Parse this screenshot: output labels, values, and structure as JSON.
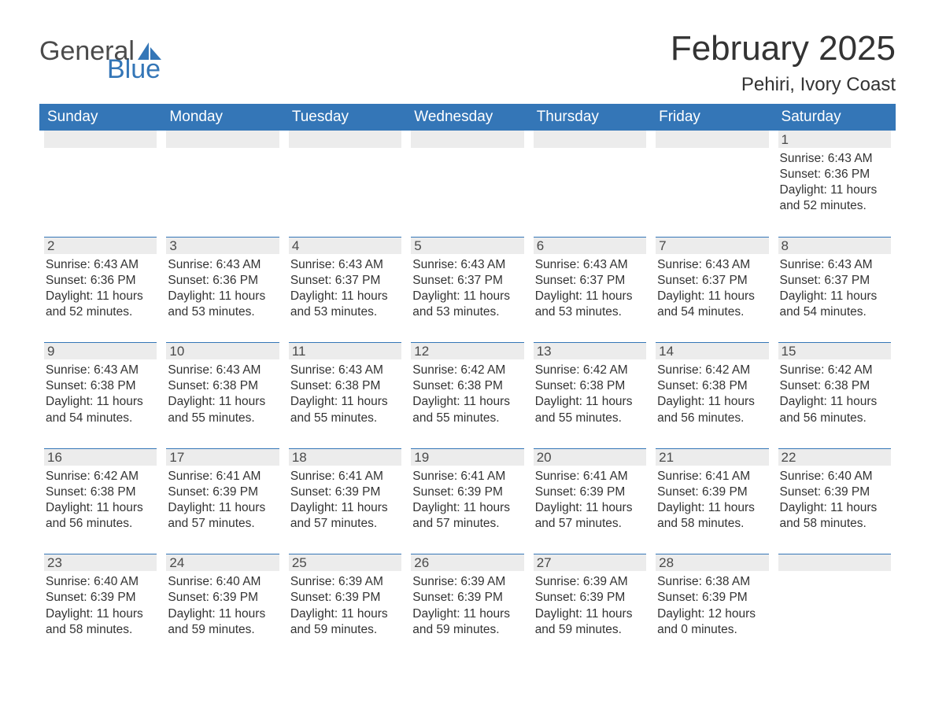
{
  "logo": {
    "part1": "General",
    "part2": "Blue",
    "sail_color": "#3476b7"
  },
  "title": "February 2025",
  "location": "Pehiri, Ivory Coast",
  "colors": {
    "header_bg": "#3476b7",
    "header_text": "#ffffff",
    "daybar_bg": "#ececec",
    "daybar_border": "#3476b7",
    "text": "#333333",
    "page_bg": "#ffffff"
  },
  "weekdays": [
    "Sunday",
    "Monday",
    "Tuesday",
    "Wednesday",
    "Thursday",
    "Friday",
    "Saturday"
  ],
  "grid": {
    "rows": 5,
    "cols": 7,
    "empty_leading": 6,
    "empty_trailing": 1
  },
  "days": [
    {
      "n": "1",
      "sunrise": "6:43 AM",
      "sunset": "6:36 PM",
      "daylight": "11 hours and 52 minutes."
    },
    {
      "n": "2",
      "sunrise": "6:43 AM",
      "sunset": "6:36 PM",
      "daylight": "11 hours and 52 minutes."
    },
    {
      "n": "3",
      "sunrise": "6:43 AM",
      "sunset": "6:36 PM",
      "daylight": "11 hours and 53 minutes."
    },
    {
      "n": "4",
      "sunrise": "6:43 AM",
      "sunset": "6:37 PM",
      "daylight": "11 hours and 53 minutes."
    },
    {
      "n": "5",
      "sunrise": "6:43 AM",
      "sunset": "6:37 PM",
      "daylight": "11 hours and 53 minutes."
    },
    {
      "n": "6",
      "sunrise": "6:43 AM",
      "sunset": "6:37 PM",
      "daylight": "11 hours and 53 minutes."
    },
    {
      "n": "7",
      "sunrise": "6:43 AM",
      "sunset": "6:37 PM",
      "daylight": "11 hours and 54 minutes."
    },
    {
      "n": "8",
      "sunrise": "6:43 AM",
      "sunset": "6:37 PM",
      "daylight": "11 hours and 54 minutes."
    },
    {
      "n": "9",
      "sunrise": "6:43 AM",
      "sunset": "6:38 PM",
      "daylight": "11 hours and 54 minutes."
    },
    {
      "n": "10",
      "sunrise": "6:43 AM",
      "sunset": "6:38 PM",
      "daylight": "11 hours and 55 minutes."
    },
    {
      "n": "11",
      "sunrise": "6:43 AM",
      "sunset": "6:38 PM",
      "daylight": "11 hours and 55 minutes."
    },
    {
      "n": "12",
      "sunrise": "6:42 AM",
      "sunset": "6:38 PM",
      "daylight": "11 hours and 55 minutes."
    },
    {
      "n": "13",
      "sunrise": "6:42 AM",
      "sunset": "6:38 PM",
      "daylight": "11 hours and 55 minutes."
    },
    {
      "n": "14",
      "sunrise": "6:42 AM",
      "sunset": "6:38 PM",
      "daylight": "11 hours and 56 minutes."
    },
    {
      "n": "15",
      "sunrise": "6:42 AM",
      "sunset": "6:38 PM",
      "daylight": "11 hours and 56 minutes."
    },
    {
      "n": "16",
      "sunrise": "6:42 AM",
      "sunset": "6:38 PM",
      "daylight": "11 hours and 56 minutes."
    },
    {
      "n": "17",
      "sunrise": "6:41 AM",
      "sunset": "6:39 PM",
      "daylight": "11 hours and 57 minutes."
    },
    {
      "n": "18",
      "sunrise": "6:41 AM",
      "sunset": "6:39 PM",
      "daylight": "11 hours and 57 minutes."
    },
    {
      "n": "19",
      "sunrise": "6:41 AM",
      "sunset": "6:39 PM",
      "daylight": "11 hours and 57 minutes."
    },
    {
      "n": "20",
      "sunrise": "6:41 AM",
      "sunset": "6:39 PM",
      "daylight": "11 hours and 57 minutes."
    },
    {
      "n": "21",
      "sunrise": "6:41 AM",
      "sunset": "6:39 PM",
      "daylight": "11 hours and 58 minutes."
    },
    {
      "n": "22",
      "sunrise": "6:40 AM",
      "sunset": "6:39 PM",
      "daylight": "11 hours and 58 minutes."
    },
    {
      "n": "23",
      "sunrise": "6:40 AM",
      "sunset": "6:39 PM",
      "daylight": "11 hours and 58 minutes."
    },
    {
      "n": "24",
      "sunrise": "6:40 AM",
      "sunset": "6:39 PM",
      "daylight": "11 hours and 59 minutes."
    },
    {
      "n": "25",
      "sunrise": "6:39 AM",
      "sunset": "6:39 PM",
      "daylight": "11 hours and 59 minutes."
    },
    {
      "n": "26",
      "sunrise": "6:39 AM",
      "sunset": "6:39 PM",
      "daylight": "11 hours and 59 minutes."
    },
    {
      "n": "27",
      "sunrise": "6:39 AM",
      "sunset": "6:39 PM",
      "daylight": "11 hours and 59 minutes."
    },
    {
      "n": "28",
      "sunrise": "6:38 AM",
      "sunset": "6:39 PM",
      "daylight": "12 hours and 0 minutes."
    }
  ],
  "labels": {
    "sunrise_prefix": "Sunrise: ",
    "sunset_prefix": "Sunset: ",
    "daylight_prefix": "Daylight: "
  }
}
